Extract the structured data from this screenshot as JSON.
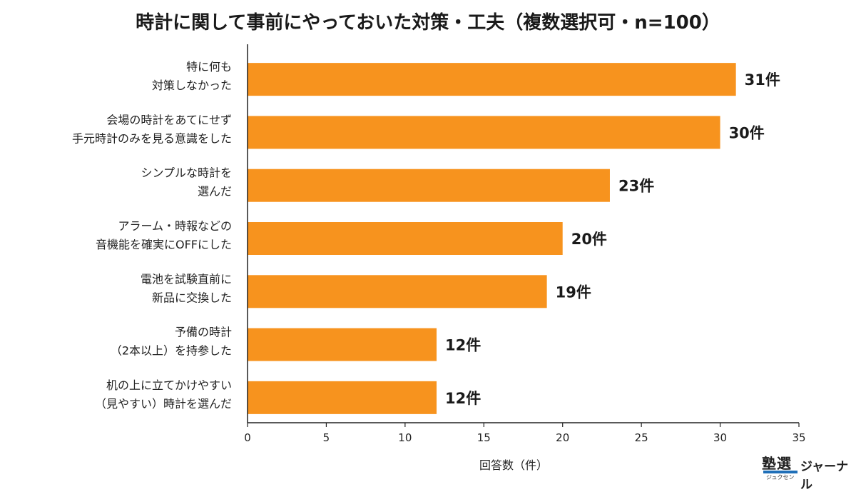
{
  "chart_data": {
    "type": "bar",
    "orientation": "horizontal",
    "title": "時計に関して事前にやっておいた対策・工夫（複数選択可・n=100）",
    "xlabel": "回答数（件）",
    "ylabel": "",
    "xlim": [
      0,
      35
    ],
    "xticks": [
      0,
      5,
      10,
      15,
      20,
      25,
      30,
      35
    ],
    "grid": false,
    "bar_color": "#f7931e",
    "value_suffix": "件",
    "categories": [
      [
        "特に何も",
        "対策しなかった"
      ],
      [
        "会場の時計をあてにせず",
        "手元時計のみを見る意識をした"
      ],
      [
        "シンプルな時計を",
        "選んだ"
      ],
      [
        "アラーム・時報などの",
        "音機能を確実にOFFにした"
      ],
      [
        "電池を試験直前に",
        "新品に交換した"
      ],
      [
        "予備の時計",
        "（2本以上）を持参した"
      ],
      [
        "机の上に立てかけやすい",
        "（見やすい）時計を選んだ"
      ]
    ],
    "values": [
      31,
      30,
      23,
      20,
      19,
      12,
      12
    ],
    "value_labels": [
      "31件",
      "30件",
      "23件",
      "20件",
      "19件",
      "12件",
      "12件"
    ]
  },
  "logo": {
    "mark": "塾選",
    "ruby": "ジュクセン",
    "text": "ジャーナル"
  }
}
